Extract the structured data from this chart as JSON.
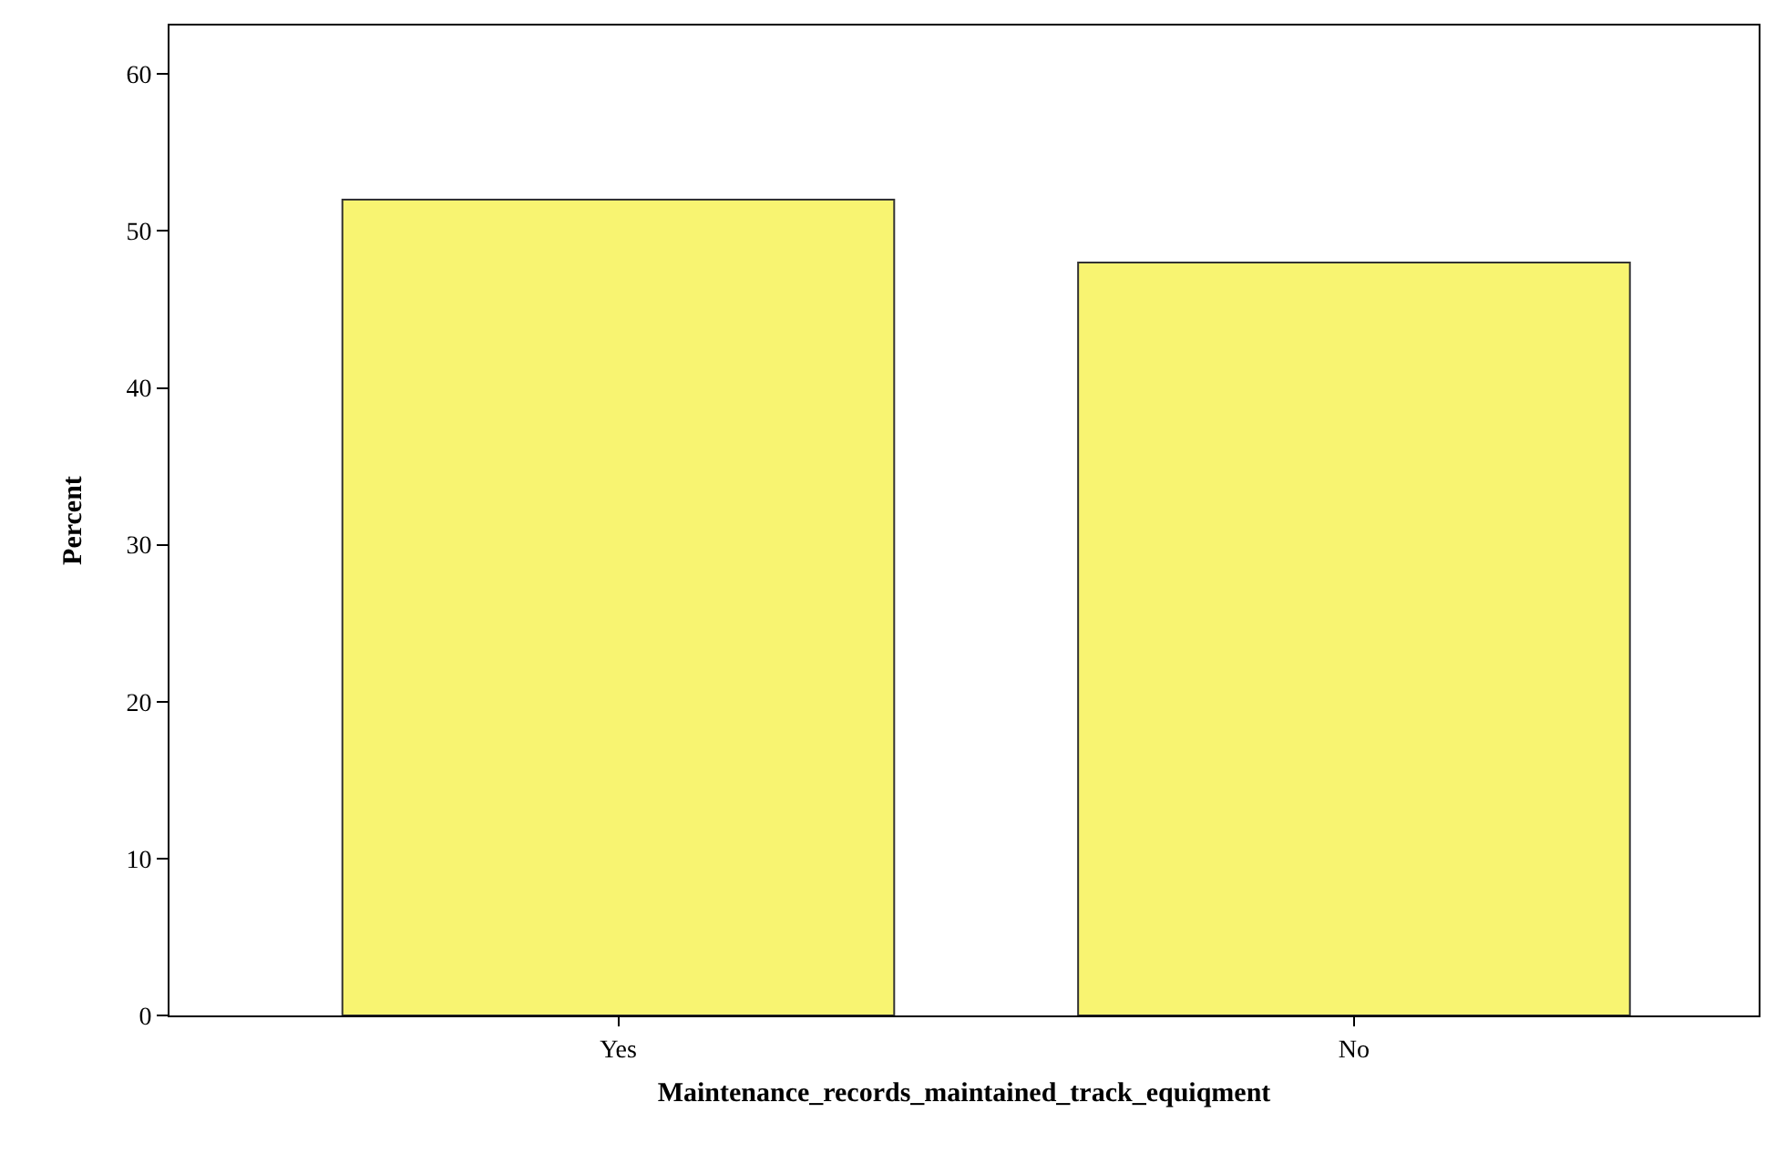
{
  "chart_data": {
    "type": "bar",
    "xlabel": "Maintenance_records_maintained_track_equiqment",
    "ylabel": "Percent",
    "categories": [
      "Yes",
      "No"
    ],
    "values": [
      52,
      48
    ],
    "color": "#f8f471",
    "ylim": [
      0,
      63.1
    ],
    "yticks": [
      0,
      10,
      20,
      30,
      40,
      50,
      60
    ],
    "grid": false
  }
}
